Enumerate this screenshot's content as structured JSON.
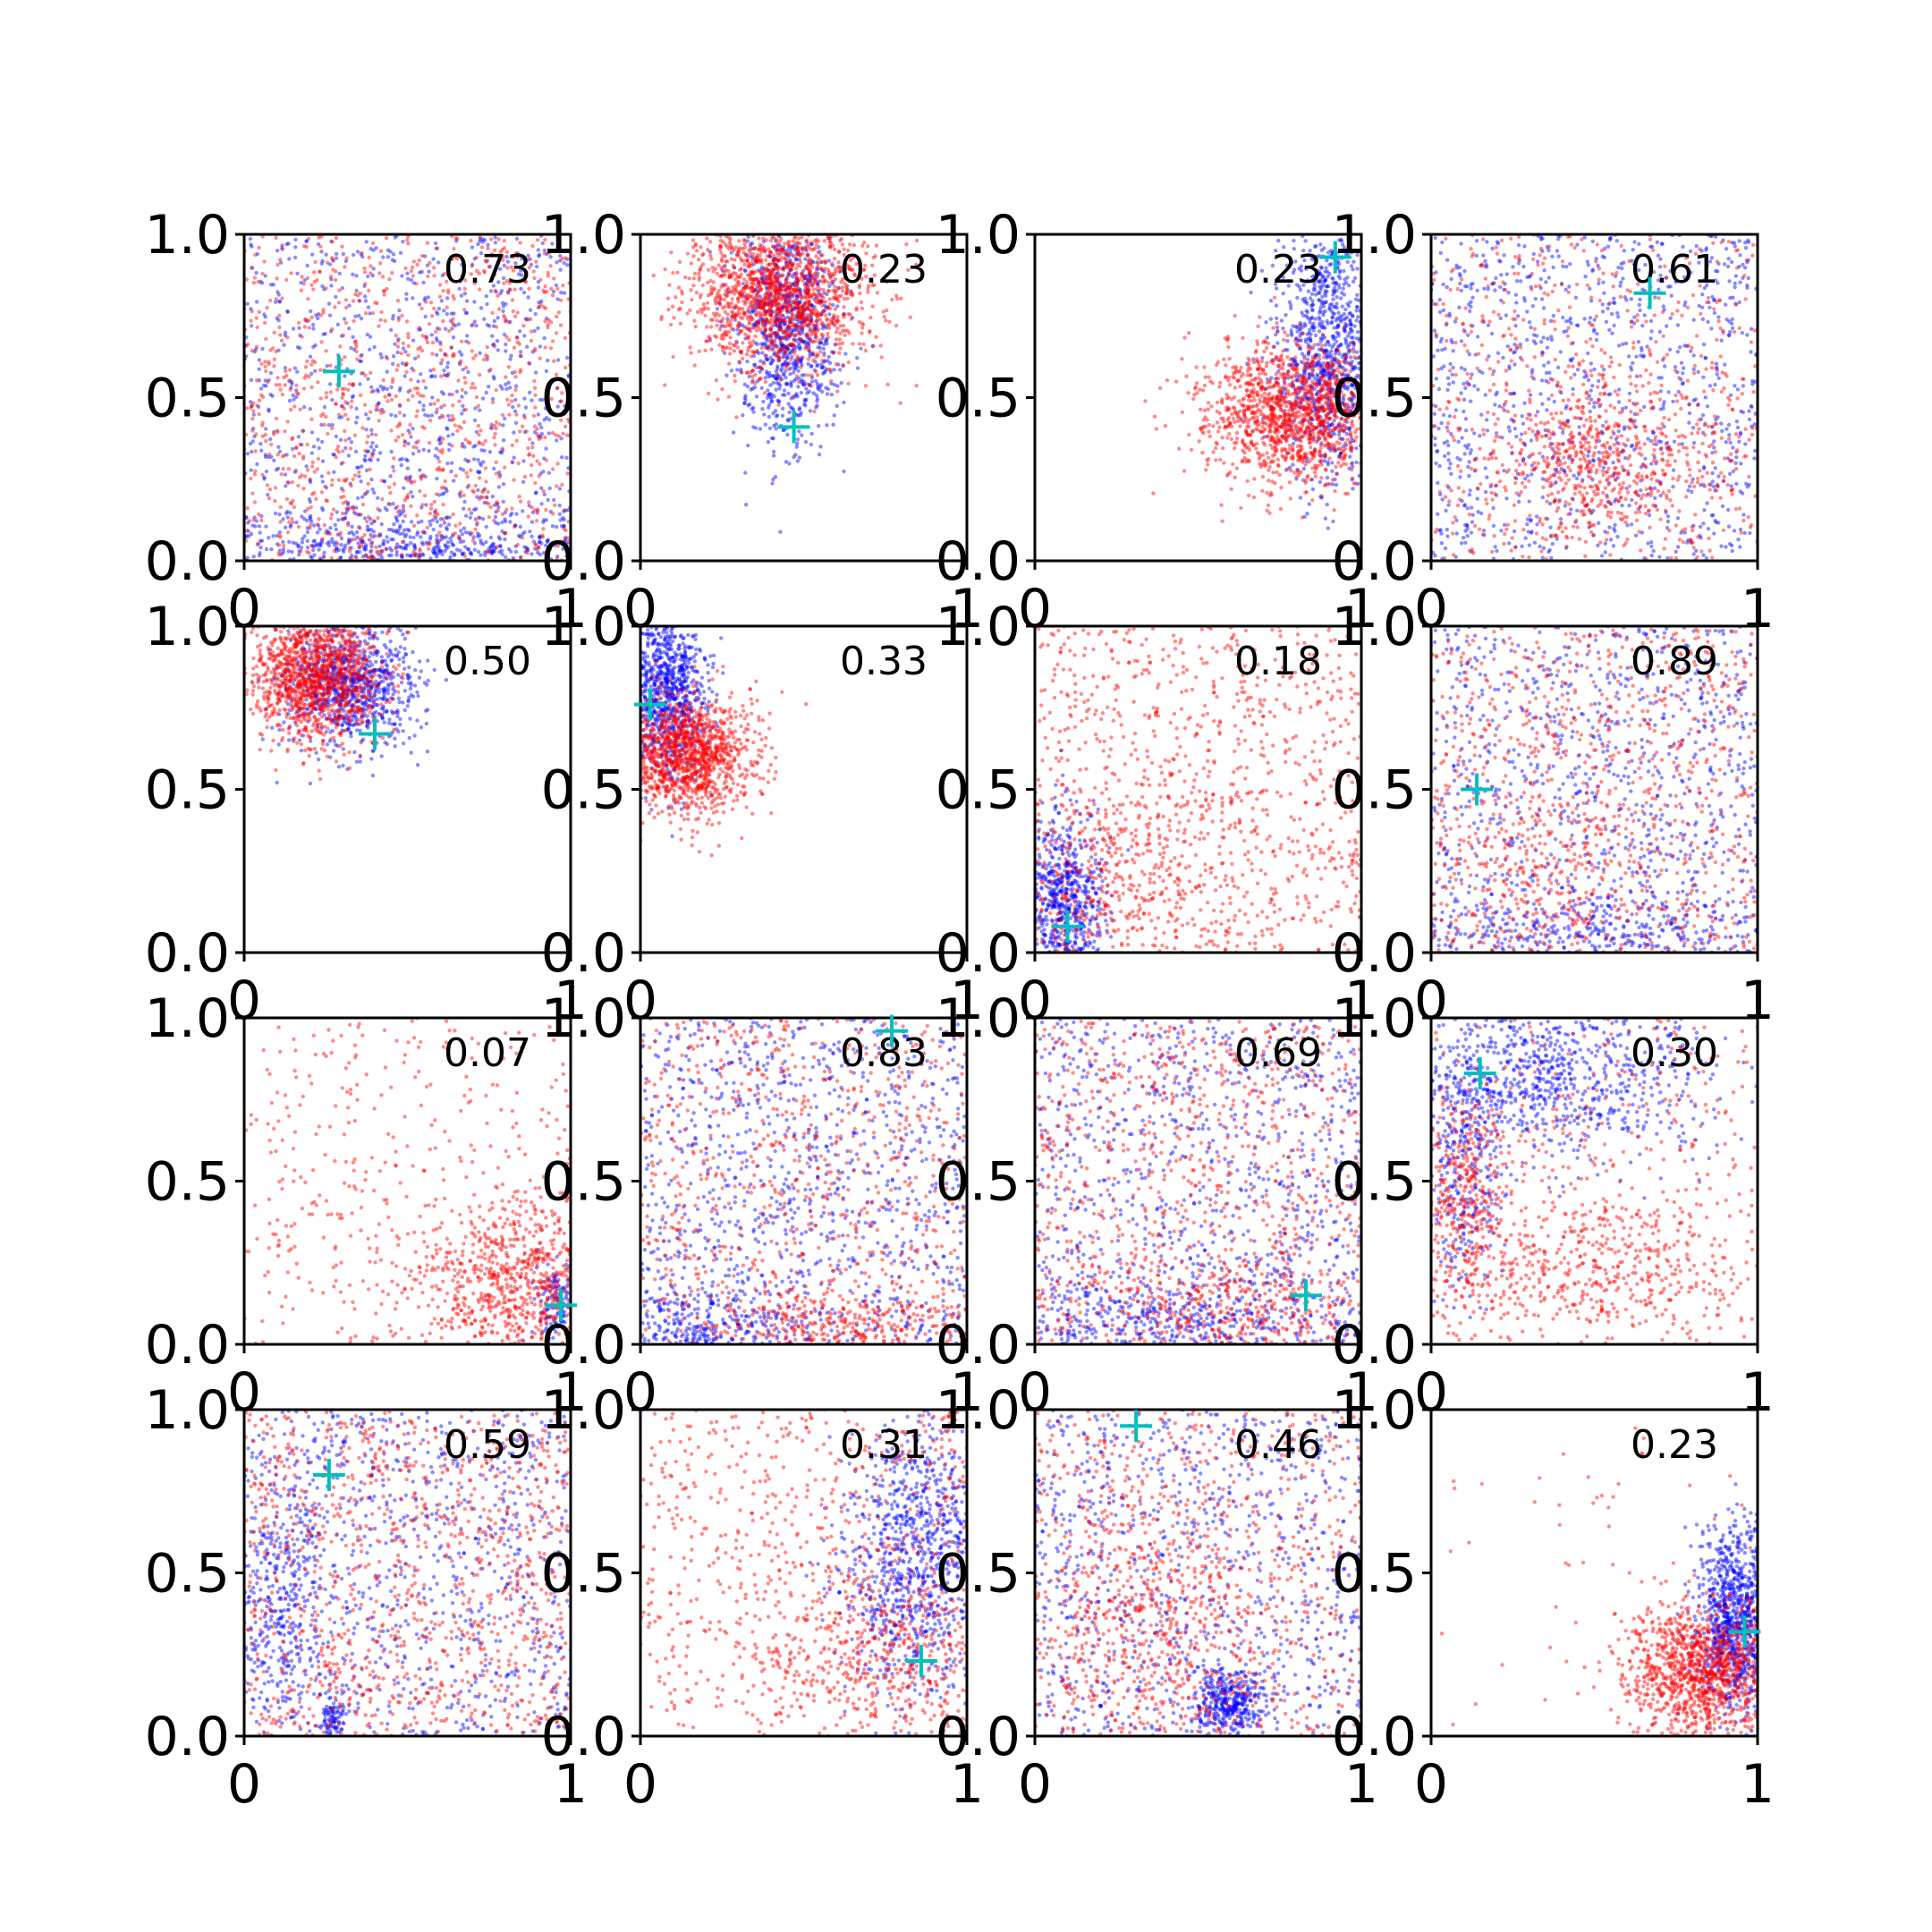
{
  "colors": {
    "background": "#ffffff",
    "series_blue": "#0000ff",
    "series_red": "#ff0000",
    "marker": "#00bfbf",
    "axes": "#000000"
  },
  "chart_data": {
    "type": "scatter",
    "layout": "4x4 grid of small scatter panels",
    "xlim": [
      0,
      1
    ],
    "ylim": [
      0,
      1
    ],
    "x_tick_labels": [
      "0",
      "1"
    ],
    "y_tick_labels": [
      "0.0",
      "0.5",
      "1.0"
    ],
    "grid": false,
    "legend": "none",
    "series_colors": [
      "blue",
      "red"
    ],
    "marker_style": "cyan plus",
    "panels": [
      {
        "value_label": "0.73",
        "marker": [
          0.29,
          0.58
        ],
        "clusters": [
          {
            "color": "blue",
            "cx": 0.5,
            "cy": 0.5,
            "sx": 0.5,
            "sy": 0.5,
            "n": 900,
            "uniform": true
          },
          {
            "color": "blue",
            "cx": 0.55,
            "cy": 0.05,
            "sx": 0.3,
            "sy": 0.06,
            "n": 500
          },
          {
            "color": "red",
            "cx": 0.5,
            "cy": 0.5,
            "sx": 0.5,
            "sy": 0.5,
            "n": 1000,
            "uniform": true
          }
        ]
      },
      {
        "value_label": "0.23",
        "marker": [
          0.47,
          0.41
        ],
        "clusters": [
          {
            "color": "blue",
            "cx": 0.45,
            "cy": 0.7,
            "sx": 0.08,
            "sy": 0.17,
            "n": 900
          },
          {
            "color": "red",
            "cx": 0.42,
            "cy": 0.82,
            "sx": 0.14,
            "sy": 0.12,
            "n": 1500
          }
        ]
      },
      {
        "value_label": "0.23",
        "marker": [
          0.92,
          0.93
        ],
        "clusters": [
          {
            "color": "blue",
            "cx": 0.9,
            "cy": 0.65,
            "sx": 0.08,
            "sy": 0.2,
            "n": 1000
          },
          {
            "color": "red",
            "cx": 0.8,
            "cy": 0.45,
            "sx": 0.14,
            "sy": 0.11,
            "n": 1400
          }
        ]
      },
      {
        "value_label": "0.61",
        "marker": [
          0.67,
          0.82
        ],
        "clusters": [
          {
            "color": "blue",
            "cx": 0.5,
            "cy": 0.5,
            "sx": 0.5,
            "sy": 0.5,
            "n": 1000,
            "uniform": true
          },
          {
            "color": "red",
            "cx": 0.5,
            "cy": 0.5,
            "sx": 0.5,
            "sy": 0.5,
            "n": 600,
            "uniform": true
          },
          {
            "color": "red",
            "cx": 0.5,
            "cy": 0.3,
            "sx": 0.17,
            "sy": 0.12,
            "n": 500
          }
        ]
      },
      {
        "value_label": "0.50",
        "marker": [
          0.4,
          0.67
        ],
        "clusters": [
          {
            "color": "blue",
            "cx": 0.33,
            "cy": 0.82,
            "sx": 0.1,
            "sy": 0.1,
            "n": 900
          },
          {
            "color": "red",
            "cx": 0.22,
            "cy": 0.85,
            "sx": 0.1,
            "sy": 0.1,
            "n": 1300
          }
        ]
      },
      {
        "value_label": "0.33",
        "marker": [
          0.03,
          0.76
        ],
        "clusters": [
          {
            "color": "blue",
            "cx": 0.08,
            "cy": 0.8,
            "sx": 0.06,
            "sy": 0.13,
            "n": 900
          },
          {
            "color": "red",
            "cx": 0.14,
            "cy": 0.6,
            "sx": 0.1,
            "sy": 0.09,
            "n": 1300
          }
        ]
      },
      {
        "value_label": "0.18",
        "marker": [
          0.1,
          0.08
        ],
        "clusters": [
          {
            "color": "blue",
            "cx": 0.09,
            "cy": 0.15,
            "sx": 0.06,
            "sy": 0.14,
            "n": 700
          },
          {
            "color": "red",
            "cx": 0.5,
            "cy": 0.5,
            "sx": 0.5,
            "sy": 0.5,
            "n": 900,
            "uniform": true
          },
          {
            "color": "red",
            "cx": 0.25,
            "cy": 0.2,
            "sx": 0.22,
            "sy": 0.16,
            "n": 400
          }
        ]
      },
      {
        "value_label": "0.89",
        "marker": [
          0.14,
          0.5
        ],
        "clusters": [
          {
            "color": "blue",
            "cx": 0.5,
            "cy": 0.5,
            "sx": 0.5,
            "sy": 0.5,
            "n": 900,
            "uniform": true
          },
          {
            "color": "blue",
            "cx": 0.45,
            "cy": 0.06,
            "sx": 0.3,
            "sy": 0.06,
            "n": 350
          },
          {
            "color": "red",
            "cx": 0.5,
            "cy": 0.5,
            "sx": 0.5,
            "sy": 0.5,
            "n": 800,
            "uniform": true
          },
          {
            "color": "red",
            "cx": 0.4,
            "cy": 0.25,
            "sx": 0.22,
            "sy": 0.18,
            "n": 300
          }
        ]
      },
      {
        "value_label": "0.07",
        "marker": [
          0.97,
          0.12
        ],
        "clusters": [
          {
            "color": "blue",
            "cx": 0.96,
            "cy": 0.12,
            "sx": 0.04,
            "sy": 0.06,
            "n": 150
          },
          {
            "color": "red",
            "cx": 0.5,
            "cy": 0.5,
            "sx": 0.5,
            "sy": 0.5,
            "n": 400,
            "uniform": true
          },
          {
            "color": "red",
            "cx": 0.82,
            "cy": 0.2,
            "sx": 0.14,
            "sy": 0.12,
            "n": 700
          }
        ]
      },
      {
        "value_label": "0.83",
        "marker": [
          0.77,
          0.96
        ],
        "clusters": [
          {
            "color": "blue",
            "cx": 0.5,
            "cy": 0.5,
            "sx": 0.5,
            "sy": 0.5,
            "n": 1000,
            "uniform": true
          },
          {
            "color": "blue",
            "cx": 0.2,
            "cy": 0.06,
            "sx": 0.15,
            "sy": 0.06,
            "n": 300
          },
          {
            "color": "red",
            "cx": 0.5,
            "cy": 0.5,
            "sx": 0.5,
            "sy": 0.5,
            "n": 800,
            "uniform": true
          },
          {
            "color": "red",
            "cx": 0.65,
            "cy": 0.06,
            "sx": 0.2,
            "sy": 0.05,
            "n": 300
          }
        ]
      },
      {
        "value_label": "0.69",
        "marker": [
          0.83,
          0.15
        ],
        "clusters": [
          {
            "color": "blue",
            "cx": 0.5,
            "cy": 0.5,
            "sx": 0.5,
            "sy": 0.5,
            "n": 900,
            "uniform": true
          },
          {
            "color": "blue",
            "cx": 0.4,
            "cy": 0.07,
            "sx": 0.3,
            "sy": 0.06,
            "n": 400
          },
          {
            "color": "red",
            "cx": 0.5,
            "cy": 0.5,
            "sx": 0.5,
            "sy": 0.5,
            "n": 900,
            "uniform": true
          },
          {
            "color": "red",
            "cx": 0.6,
            "cy": 0.12,
            "sx": 0.25,
            "sy": 0.08,
            "n": 300
          }
        ]
      },
      {
        "value_label": "0.30",
        "marker": [
          0.15,
          0.83
        ],
        "clusters": [
          {
            "color": "blue",
            "cx": 0.35,
            "cy": 0.82,
            "sx": 0.25,
            "sy": 0.13,
            "n": 900
          },
          {
            "color": "blue",
            "cx": 0.1,
            "cy": 0.55,
            "sx": 0.06,
            "sy": 0.2,
            "n": 300
          },
          {
            "color": "red",
            "cx": 0.5,
            "cy": 0.5,
            "sx": 0.5,
            "sy": 0.5,
            "n": 400,
            "uniform": true
          },
          {
            "color": "red",
            "cx": 0.45,
            "cy": 0.25,
            "sx": 0.3,
            "sy": 0.12,
            "n": 500
          },
          {
            "color": "red",
            "cx": 0.1,
            "cy": 0.45,
            "sx": 0.06,
            "sy": 0.15,
            "n": 300
          }
        ]
      },
      {
        "value_label": "0.59",
        "marker": [
          0.26,
          0.8
        ],
        "clusters": [
          {
            "color": "blue",
            "cx": 0.5,
            "cy": 0.5,
            "sx": 0.5,
            "sy": 0.5,
            "n": 900,
            "uniform": true
          },
          {
            "color": "blue",
            "cx": 0.1,
            "cy": 0.4,
            "sx": 0.08,
            "sy": 0.2,
            "n": 300
          },
          {
            "color": "blue",
            "cx": 0.27,
            "cy": 0.06,
            "sx": 0.02,
            "sy": 0.03,
            "n": 80
          },
          {
            "color": "red",
            "cx": 0.5,
            "cy": 0.5,
            "sx": 0.5,
            "sy": 0.5,
            "n": 1100,
            "uniform": true
          }
        ]
      },
      {
        "value_label": "0.31",
        "marker": [
          0.86,
          0.23
        ],
        "clusters": [
          {
            "color": "blue",
            "cx": 0.85,
            "cy": 0.55,
            "sx": 0.12,
            "sy": 0.22,
            "n": 1000
          },
          {
            "color": "red",
            "cx": 0.5,
            "cy": 0.5,
            "sx": 0.5,
            "sy": 0.5,
            "n": 700,
            "uniform": true
          },
          {
            "color": "red",
            "cx": 0.7,
            "cy": 0.25,
            "sx": 0.2,
            "sy": 0.12,
            "n": 400
          }
        ]
      },
      {
        "value_label": "0.46",
        "marker": [
          0.31,
          0.95
        ],
        "clusters": [
          {
            "color": "blue",
            "cx": 0.5,
            "cy": 0.5,
            "sx": 0.5,
            "sy": 0.5,
            "n": 900,
            "uniform": true
          },
          {
            "color": "blue",
            "cx": 0.6,
            "cy": 0.1,
            "sx": 0.05,
            "sy": 0.05,
            "n": 350
          },
          {
            "color": "red",
            "cx": 0.5,
            "cy": 0.5,
            "sx": 0.5,
            "sy": 0.5,
            "n": 700,
            "uniform": true
          },
          {
            "color": "red",
            "cx": 0.35,
            "cy": 0.35,
            "sx": 0.2,
            "sy": 0.2,
            "n": 500
          }
        ]
      },
      {
        "value_label": "0.23",
        "marker": [
          0.96,
          0.32
        ],
        "clusters": [
          {
            "color": "blue",
            "cx": 0.93,
            "cy": 0.35,
            "sx": 0.06,
            "sy": 0.14,
            "n": 1000
          },
          {
            "color": "red",
            "cx": 0.83,
            "cy": 0.2,
            "sx": 0.12,
            "sy": 0.1,
            "n": 1200
          },
          {
            "color": "red",
            "cx": 0.5,
            "cy": 0.5,
            "sx": 0.5,
            "sy": 0.5,
            "n": 60,
            "uniform": true
          }
        ]
      }
    ]
  }
}
